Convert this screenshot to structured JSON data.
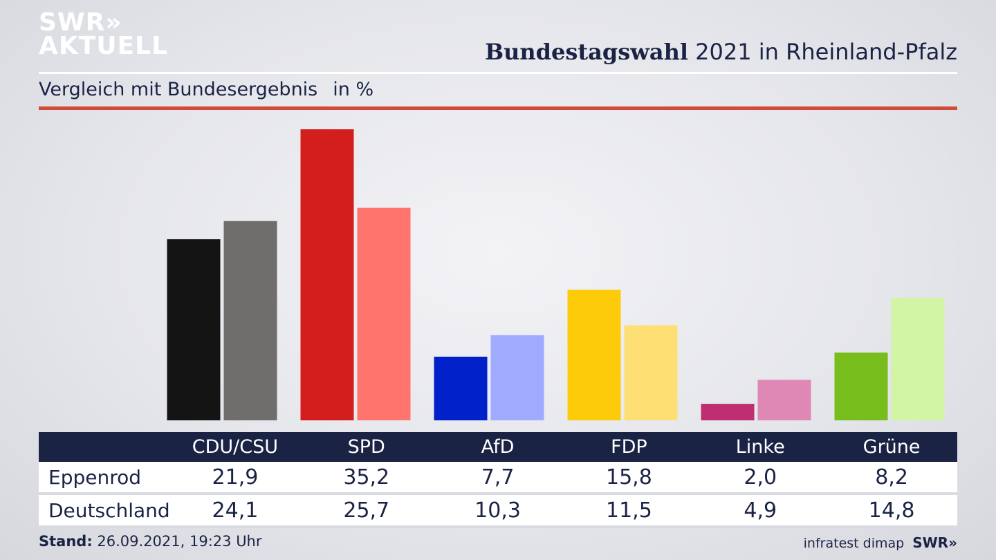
{
  "logo": {
    "line1": "SWR»",
    "line2": "AKTUELL"
  },
  "header": {
    "title_bold": "Bundestagswahl",
    "title_rest": "2021 in Rheinland-Pfalz"
  },
  "subtitle": {
    "text": "Vergleich mit Bundesergebnis",
    "unit": "in %"
  },
  "footer": {
    "stand_label": "Stand:",
    "stand_value": "26.09.2021, 19:23 Uhr",
    "source": "infratest dimap",
    "brand": "SWR»"
  },
  "chart_data": {
    "type": "bar",
    "title": "Bundestagswahl 2021 in Rheinland-Pfalz",
    "subtitle": "Vergleich mit Bundesergebnis",
    "unit": "in %",
    "categories": [
      "CDU/CSU",
      "SPD",
      "AfD",
      "FDP",
      "Linke",
      "Grüne"
    ],
    "series": [
      {
        "name": "Eppenrod",
        "values": [
          21.9,
          35.2,
          7.7,
          15.8,
          2.0,
          8.2
        ],
        "labels": [
          "21,9",
          "35,2",
          "7,7",
          "15,8",
          "2,0",
          "8,2"
        ]
      },
      {
        "name": "Deutschland",
        "values": [
          24.1,
          25.7,
          10.3,
          11.5,
          4.9,
          14.8
        ],
        "labels": [
          "24,1",
          "25,7",
          "10,3",
          "11,5",
          "4,9",
          "14,8"
        ]
      }
    ],
    "colors": {
      "Eppenrod": [
        "#141414",
        "#d41d1d",
        "#0021c9",
        "#fecb0a",
        "#bd2f71",
        "#77bd1c"
      ],
      "Deutschland": [
        "#6f6e6c",
        "#ff756e",
        "#9fabff",
        "#fddf73",
        "#e088b5",
        "#d2f5a5"
      ]
    },
    "ylim": [
      0,
      35.2
    ],
    "grid": false,
    "legend": "table-below"
  }
}
